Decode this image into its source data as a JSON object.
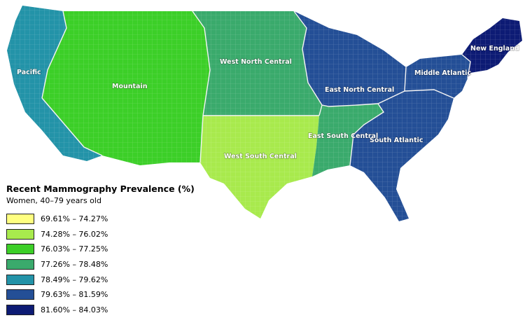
{
  "legend": {
    "title": "Recent Mammography Prevalence (%)",
    "subtitle": "Women, 40–79 years old",
    "items": [
      {
        "label": "69.61% – 74.27%",
        "color": "#ffff80"
      },
      {
        "label": "74.28% – 76.02%",
        "color": "#a8ea4d"
      },
      {
        "label": "76.03% – 77.25%",
        "color": "#3ccf28"
      },
      {
        "label": "77.26% – 78.48%",
        "color": "#3aaa6c"
      },
      {
        "label": "78.49% – 79.62%",
        "color": "#2393a8"
      },
      {
        "label": "79.63% – 81.59%",
        "color": "#244f96"
      },
      {
        "label": "81.60% – 84.03%",
        "color": "#0d1b74"
      }
    ]
  },
  "regions": [
    {
      "id": "pacific",
      "label": "Pacific",
      "class": 4
    },
    {
      "id": "mountain",
      "label": "Mountain",
      "class": 2
    },
    {
      "id": "west-north-central",
      "label": "West North Central",
      "class": 3
    },
    {
      "id": "west-south-central",
      "label": "West South Central",
      "class": 1
    },
    {
      "id": "east-north-central",
      "label": "East North Central",
      "class": 5
    },
    {
      "id": "east-south-central",
      "label": "East South Central",
      "class": 3
    },
    {
      "id": "south-atlantic",
      "label": "South Atlantic",
      "class": 5
    },
    {
      "id": "middle-atlantic",
      "label": "Middle Atlantic",
      "class": 5
    },
    {
      "id": "new-england",
      "label": "New England",
      "class": 6
    }
  ]
}
